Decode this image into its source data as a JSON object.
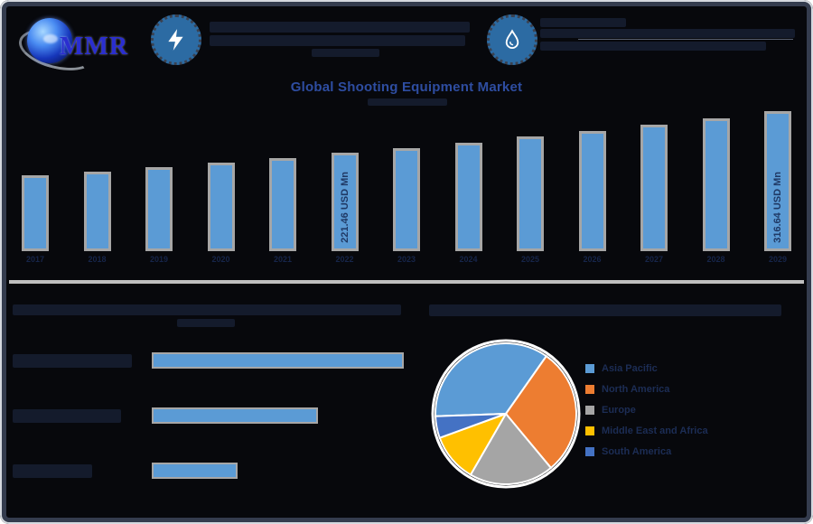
{
  "brand": {
    "logo_text": "MMR",
    "logo_icon": "globe-logo"
  },
  "header": {
    "stat1_icon": "lightning-icon",
    "stat2_icon": "droplet-icon"
  },
  "main_title": "Global Shooting Equipment Market",
  "accent_colors": {
    "title_blue": "#2E4DA1",
    "bar_fill": "#5B9BD5",
    "bar_border": "#A6A6A6",
    "axis_gray": "#BFBFBF",
    "icon_circle_blue": "#2C6BA3",
    "value_label_navy": "#1F3864"
  },
  "chart_data": [
    {
      "id": "market-size-by-year",
      "type": "bar",
      "title": "Global Shooting Equipment Market",
      "unit": "USD Mn",
      "categories": [
        "2017",
        "2018",
        "2019",
        "2020",
        "2021",
        "2022",
        "2023",
        "2024",
        "2025",
        "2026",
        "2027",
        "2028",
        "2029"
      ],
      "values": [
        171.5,
        180.5,
        190.0,
        199.9,
        210.4,
        221.46,
        233.1,
        245.3,
        258.2,
        271.7,
        286.0,
        301.0,
        316.64
      ],
      "labeled_bars": [
        {
          "index": 5,
          "label": "221.46 USD Mn"
        },
        {
          "index": 12,
          "label": "316.64 USD Mn"
        }
      ],
      "ylim": [
        0,
        340
      ],
      "grid": false,
      "bar_color": "#5B9BD5",
      "bar_border_color": "#A6A6A6"
    },
    {
      "id": "bottom-left-segment-bars",
      "type": "bar-horizontal",
      "categories": [
        "",
        "",
        ""
      ],
      "relative_values": [
        100,
        66,
        34
      ],
      "bar_color": "#5B9BD5",
      "bar_border_color": "#A6A6A6"
    },
    {
      "id": "regional-share-pie",
      "type": "pie",
      "labels": [
        "Asia Pacific",
        "North America",
        "Europe",
        "Middle East and Africa",
        "South America"
      ],
      "values": [
        35.3,
        29.2,
        19.4,
        11.1,
        5.0
      ],
      "colors": [
        "#5B9BD5",
        "#ED7D31",
        "#A5A5A5",
        "#FFC000",
        "#4472C4"
      ],
      "start_angle_deg": 268,
      "legend_position": "right"
    }
  ]
}
